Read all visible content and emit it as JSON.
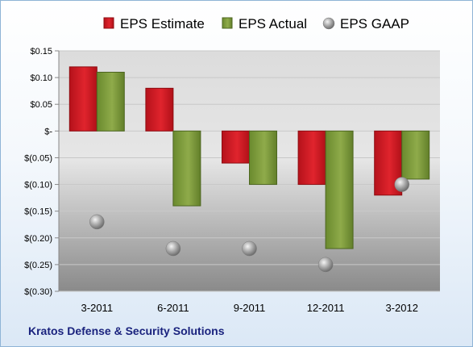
{
  "company": "Kratos Defense & Security Solutions",
  "chart_data": {
    "type": "bar",
    "categories": [
      "3-2011",
      "6-2011",
      "9-2011",
      "12-2011",
      "3-2012"
    ],
    "series": [
      {
        "name": "EPS Estimate",
        "kind": "bar",
        "color": "#d41e26",
        "values": [
          0.12,
          0.08,
          -0.06,
          -0.1,
          -0.12
        ]
      },
      {
        "name": "EPS Actual",
        "kind": "bar",
        "color": "#7d9a3c",
        "values": [
          0.11,
          -0.14,
          -0.1,
          -0.22,
          -0.09
        ]
      },
      {
        "name": "EPS GAAP",
        "kind": "scatter",
        "color": "#a9a9a9",
        "values": [
          -0.17,
          -0.22,
          -0.22,
          -0.25,
          -0.1
        ]
      }
    ],
    "yticks": [
      0.15,
      0.1,
      0.05,
      0,
      -0.05,
      -0.1,
      -0.15,
      -0.2,
      -0.25,
      -0.3
    ],
    "ytick_labels": [
      "$0.15",
      "$0.10",
      "$0.05",
      "$-",
      "$(0.05)",
      "$(0.10)",
      "$(0.15)",
      "$(0.20)",
      "$(0.25)",
      "$(0.30)"
    ],
    "ylim": [
      -0.3,
      0.15
    ],
    "grid": true,
    "legend_position": "top"
  }
}
